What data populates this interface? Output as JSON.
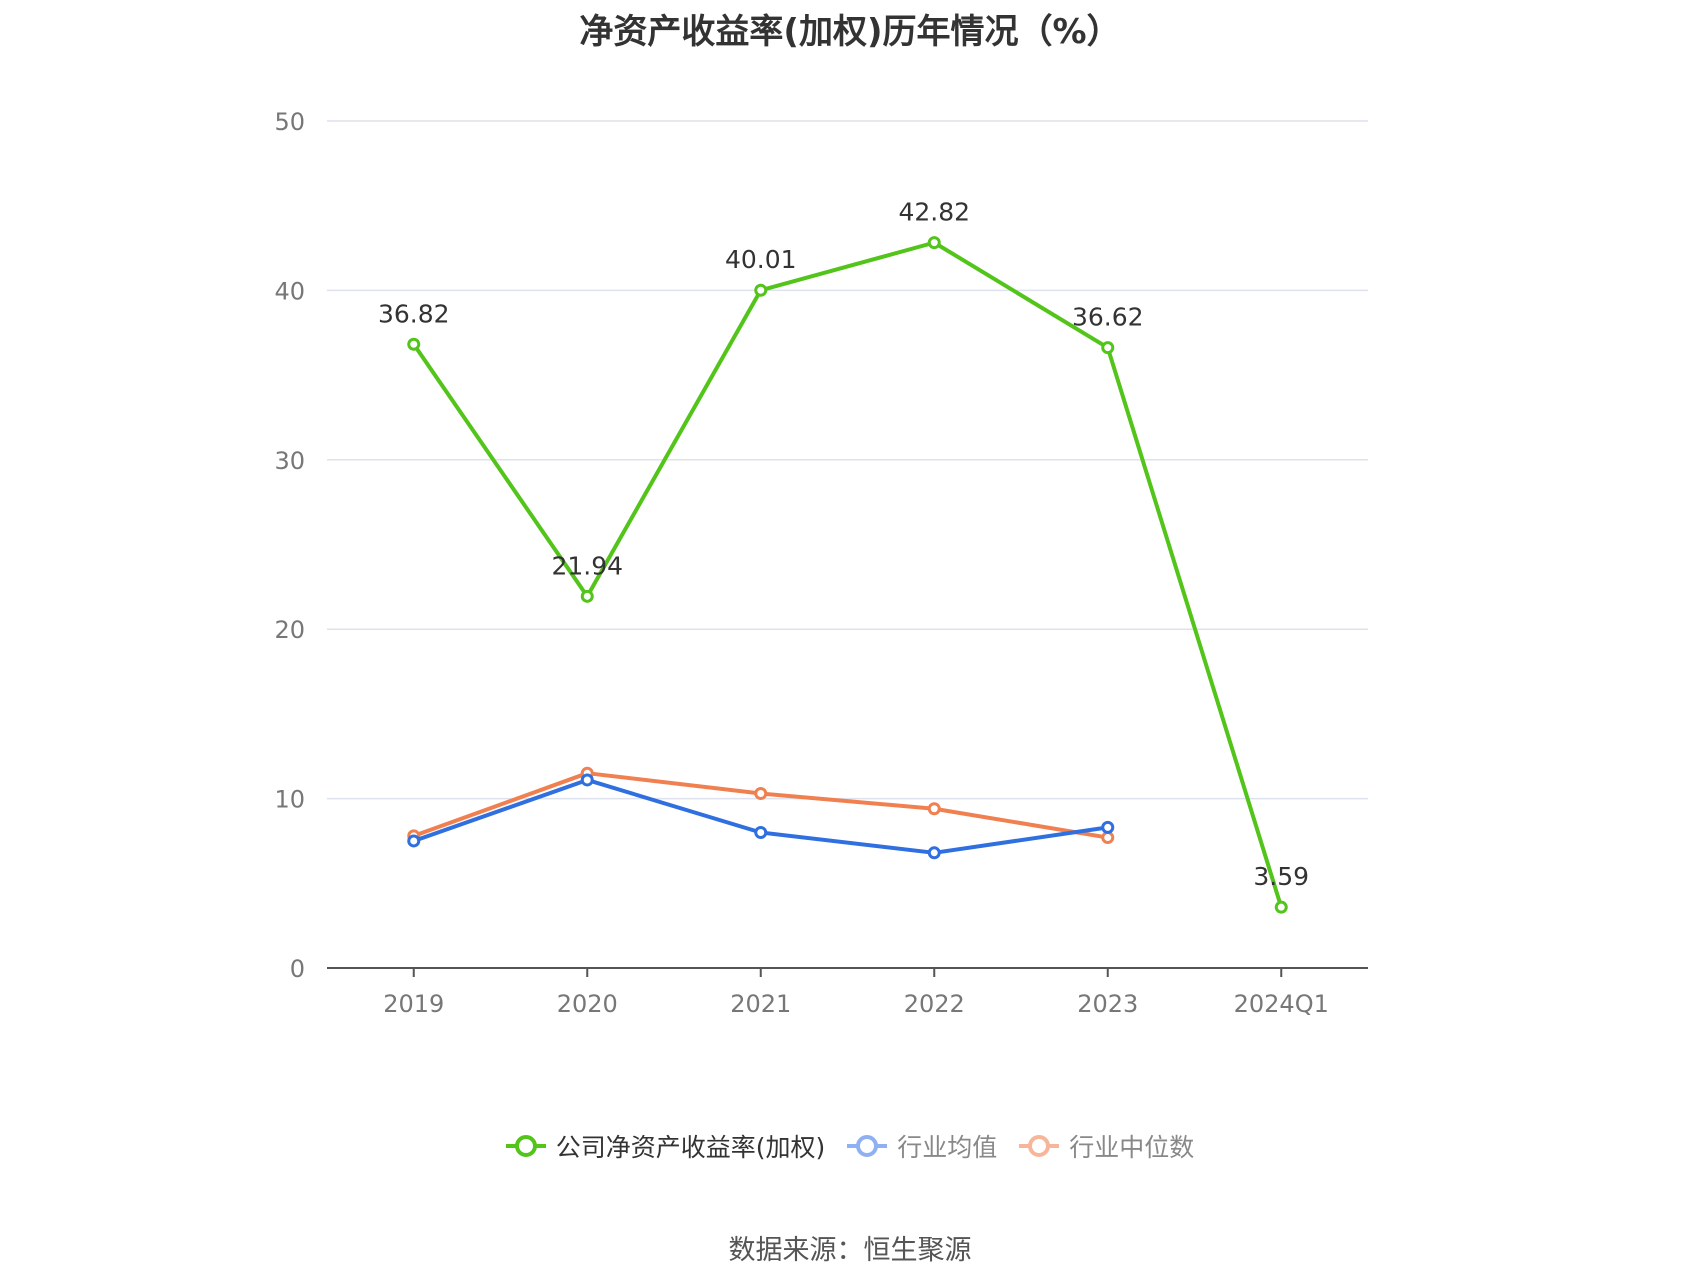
{
  "chart_data": {
    "type": "line",
    "title": "净资产收益率(加权)历年情况（%）",
    "categories": [
      "2019",
      "2020",
      "2021",
      "2022",
      "2023",
      "2024Q1"
    ],
    "yticks": [
      "0",
      "10",
      "20",
      "30",
      "40",
      "50"
    ],
    "ylim": [
      0,
      50
    ],
    "grid": true,
    "legend_position": "bottom",
    "series": [
      {
        "name": "公司净资产收益率(加权)",
        "color": "#52c41a",
        "values": [
          36.82,
          21.94,
          40.01,
          42.82,
          36.62,
          3.59
        ],
        "labels": [
          "36.82",
          "21.94",
          "40.01",
          "42.82",
          "36.62",
          "3.59"
        ]
      },
      {
        "name": "行业均值",
        "color": "#2f6fe0",
        "values": [
          7.5,
          11.1,
          8.0,
          6.8,
          8.3,
          null
        ]
      },
      {
        "name": "行业中位数",
        "color": "#f08050",
        "values": [
          7.8,
          11.5,
          10.3,
          9.4,
          7.7,
          null
        ]
      }
    ],
    "legend_colors": [
      "#52c41a",
      "#8fb0f2",
      "#f7b599"
    ],
    "source": "数据来源：恒生聚源"
  }
}
